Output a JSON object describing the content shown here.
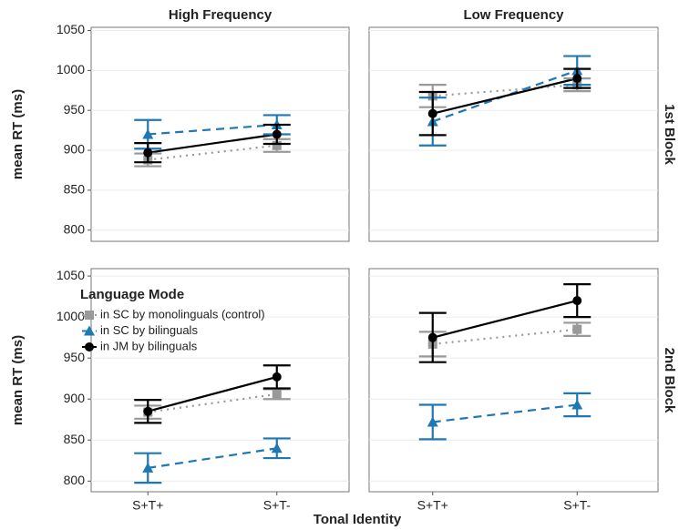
{
  "xlabel": "Tonal Identity",
  "chart_data": [
    {
      "type": "line",
      "column_title": "High Frequency",
      "ylabel": "mean RT (ms)",
      "categories": [
        null,
        null
      ],
      "ylim": [
        786,
        1054
      ],
      "yticks": [
        800,
        850,
        900,
        950,
        1000,
        1050
      ],
      "grid": true,
      "series": [
        {
          "color": "#999999",
          "marker": "square",
          "linestyle": "dotted",
          "values": [
            888,
            906
          ],
          "errors": [
            8,
            8
          ]
        },
        {
          "color": "#1f78b4",
          "marker": "triangle",
          "linestyle": "dashed",
          "values": [
            920,
            932
          ],
          "errors": [
            18,
            12
          ]
        },
        {
          "color": "#000000",
          "marker": "circle",
          "linestyle": "solid",
          "values": [
            897,
            920
          ],
          "errors": [
            12,
            12
          ]
        }
      ]
    },
    {
      "type": "line",
      "column_title": "Low Frequency",
      "row_label": "1st Block",
      "categories": [
        null,
        null
      ],
      "grid": true,
      "series": [
        {
          "color": "#999999",
          "marker": "square",
          "linestyle": "dotted",
          "values": [
            968,
            982
          ],
          "errors": [
            14,
            8
          ]
        },
        {
          "color": "#1f78b4",
          "marker": "triangle",
          "linestyle": "dashed",
          "values": [
            936,
            1000
          ],
          "errors": [
            30,
            18
          ]
        },
        {
          "color": "#000000",
          "marker": "circle",
          "linestyle": "solid",
          "values": [
            946,
            990
          ],
          "errors": [
            27,
            12
          ]
        }
      ]
    },
    {
      "type": "line",
      "ylabel": "mean RT (ms)",
      "legend_title": "Language Mode",
      "categories": [
        "S+T+",
        "S+T-"
      ],
      "ylim": [
        787,
        1059
      ],
      "yticks": [
        800,
        850,
        900,
        950,
        1000,
        1050
      ],
      "grid": true,
      "series": [
        {
          "name": "in SC by monolinguals (control)",
          "color": "#999999",
          "marker": "square",
          "linestyle": "dotted",
          "values": [
            884,
            906
          ],
          "errors": [
            8,
            6
          ]
        },
        {
          "name": "in SC by bilinguals",
          "color": "#1f78b4",
          "marker": "triangle",
          "linestyle": "dashed",
          "values": [
            816,
            840
          ],
          "errors": [
            18,
            12
          ]
        },
        {
          "name": "in JM by bilinguals",
          "color": "#000000",
          "marker": "circle",
          "linestyle": "solid",
          "values": [
            885,
            927
          ],
          "errors": [
            14,
            14
          ]
        }
      ]
    },
    {
      "type": "line",
      "row_label": "2nd Block",
      "categories": [
        "S+T+",
        "S+T-"
      ],
      "grid": true,
      "series": [
        {
          "color": "#999999",
          "marker": "square",
          "linestyle": "dotted",
          "values": [
            967,
            985
          ],
          "errors": [
            15,
            8
          ]
        },
        {
          "color": "#1f78b4",
          "marker": "triangle",
          "linestyle": "dashed",
          "values": [
            872,
            893
          ],
          "errors": [
            21,
            14
          ]
        },
        {
          "color": "#000000",
          "marker": "circle",
          "linestyle": "solid",
          "values": [
            975,
            1020
          ],
          "errors": [
            30,
            20
          ]
        }
      ]
    }
  ]
}
